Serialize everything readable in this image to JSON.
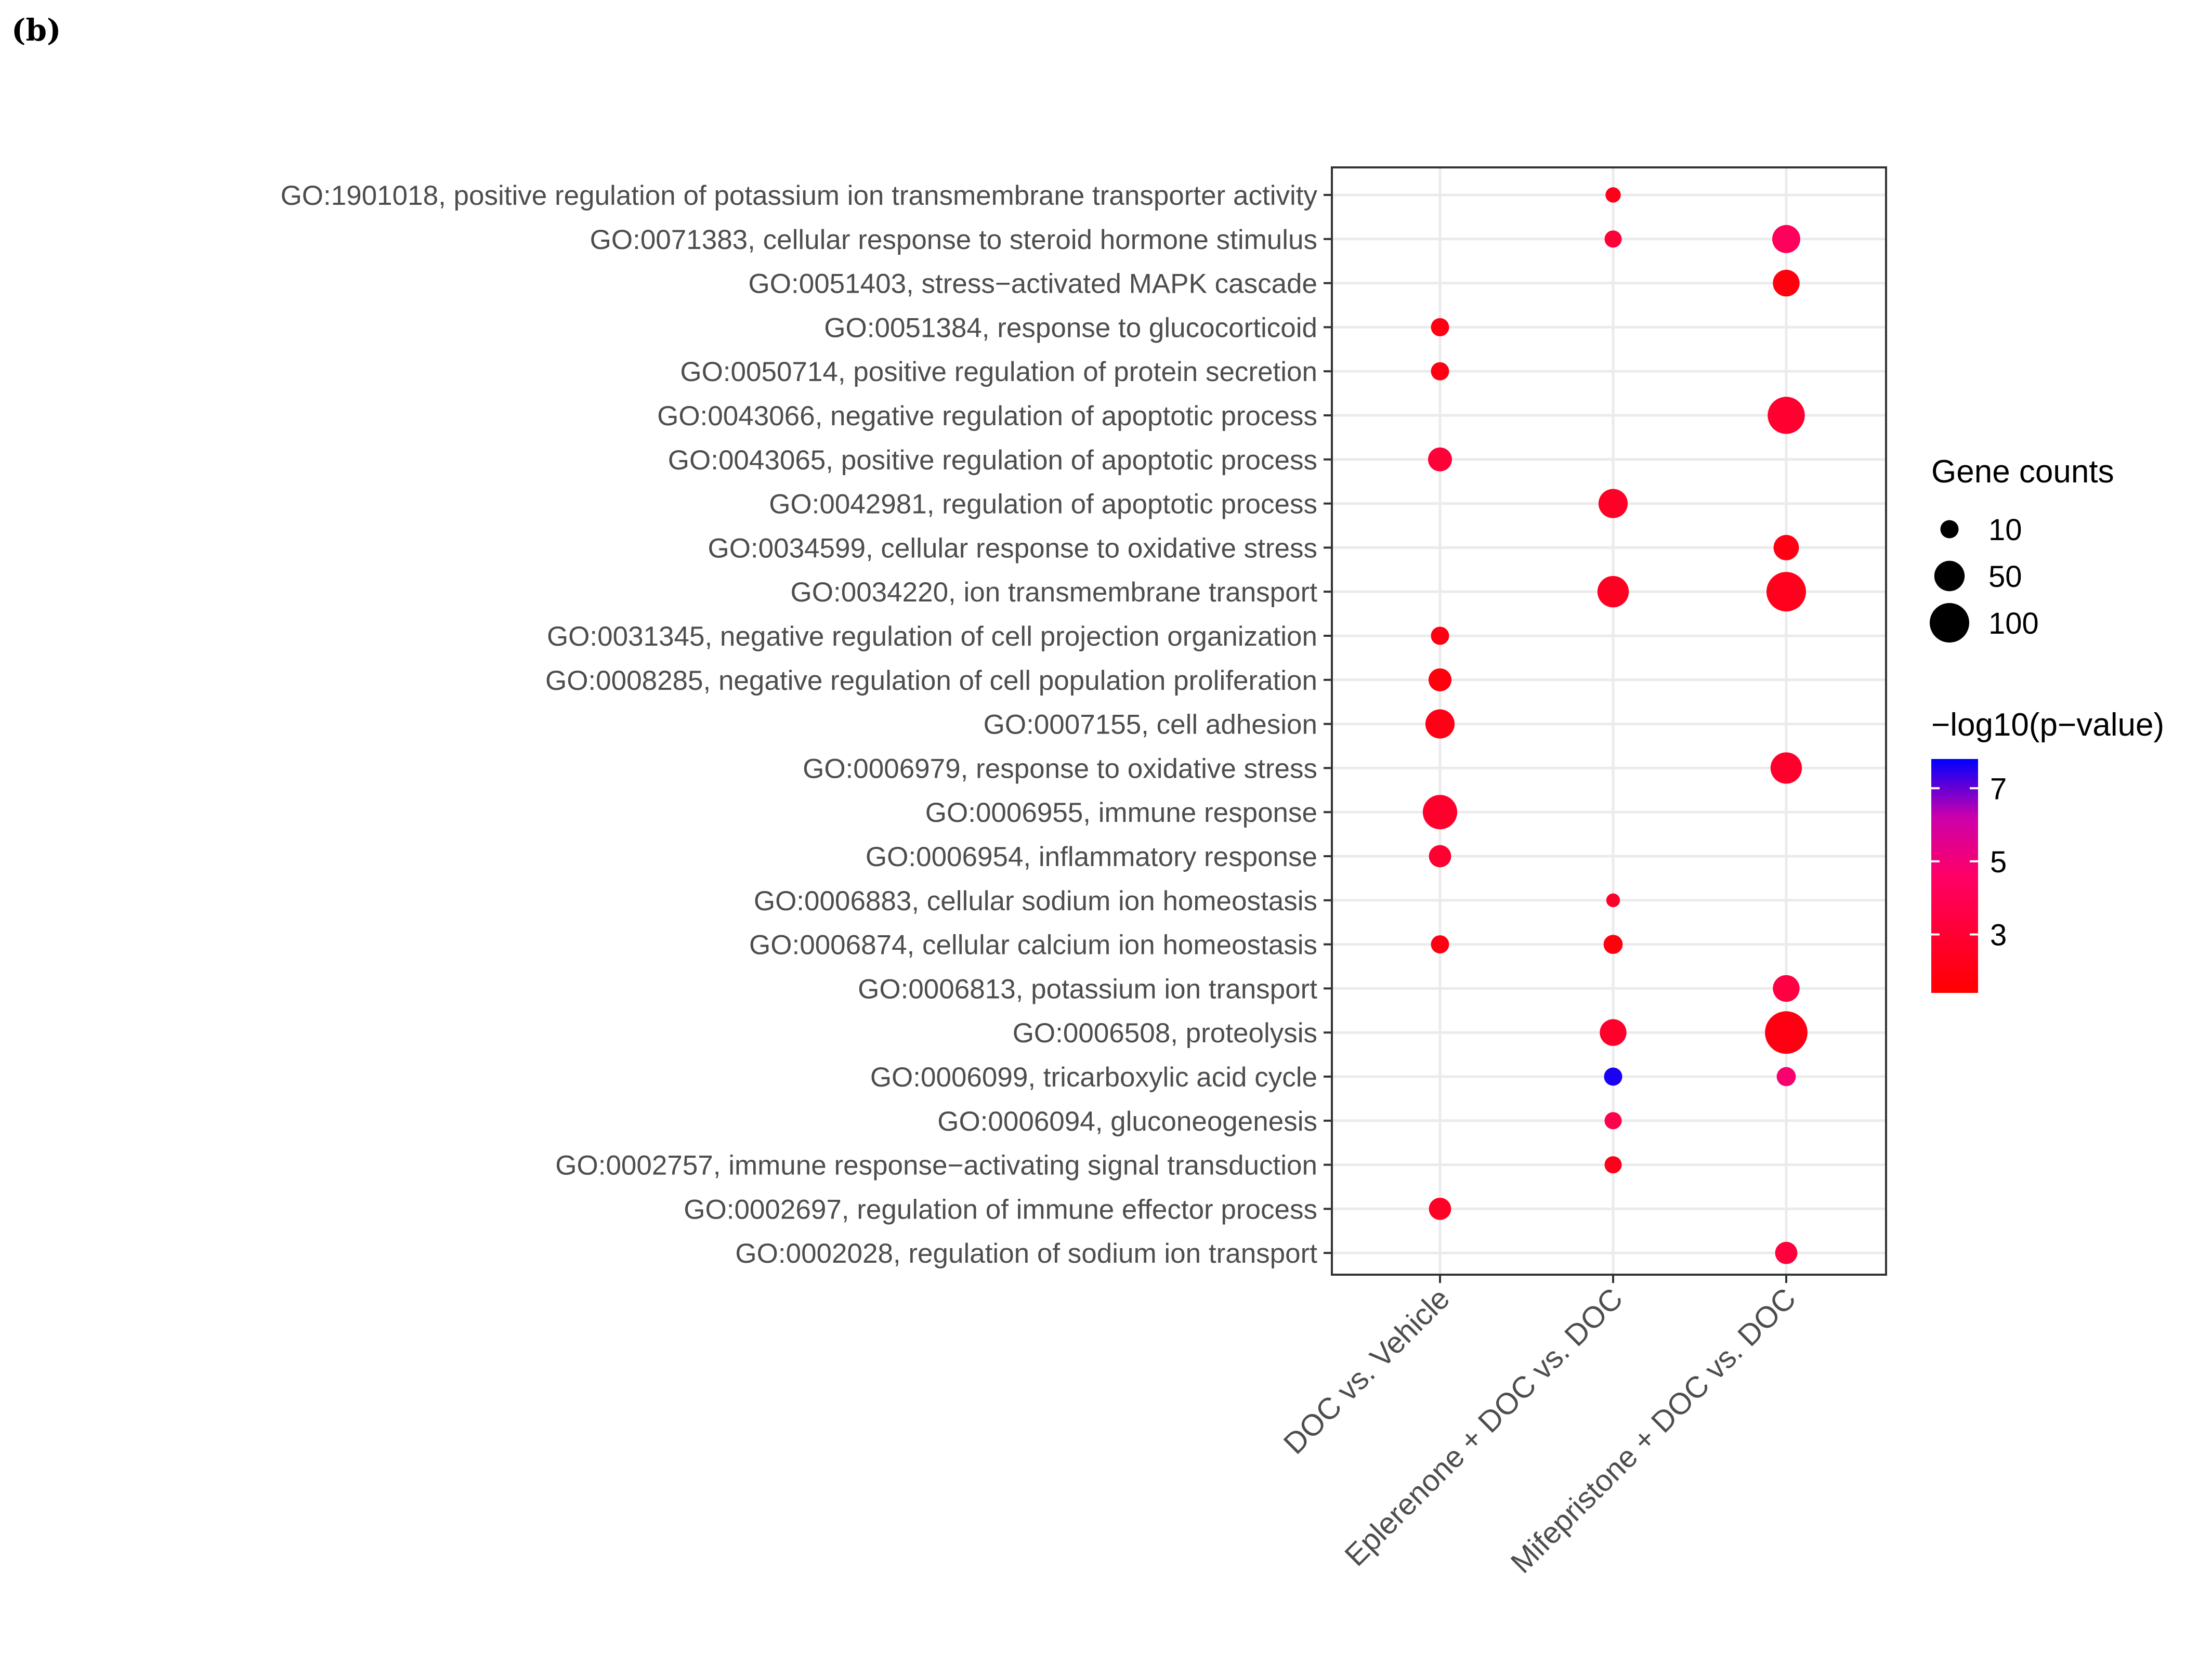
{
  "panel_label": "(b)",
  "chart_data": {
    "type": "scatter",
    "subtype": "dot-plot",
    "title": "",
    "xlabel": "",
    "ylabel": "",
    "grid": true,
    "x_categories": [
      "DOC vs. Vehicle",
      "Eplerenone + DOC vs. DOC",
      "Mifepristone + DOC vs. DOC"
    ],
    "y_categories": [
      "GO:1901018, positive regulation of potassium ion transmembrane transporter activity",
      "GO:0071383, cellular response to steroid hormone stimulus",
      "GO:0051403, stress−activated MAPK cascade",
      "GO:0051384, response to glucocorticoid",
      "GO:0050714, positive regulation of protein secretion",
      "GO:0043066, negative regulation of apoptotic process",
      "GO:0043065, positive regulation of apoptotic process",
      "GO:0042981, regulation of apoptotic process",
      "GO:0034599, cellular response to oxidative stress",
      "GO:0034220, ion transmembrane transport",
      "GO:0031345, negative regulation of cell projection organization",
      "GO:0008285, negative regulation of cell population proliferation",
      "GO:0007155, cell adhesion",
      "GO:0006979, response to oxidative stress",
      "GO:0006955, immune response",
      "GO:0006954, inflammatory response",
      "GO:0006883, cellular sodium ion homeostasis",
      "GO:0006874, cellular calcium ion homeostasis",
      "GO:0006813, potassium ion transport",
      "GO:0006508, proteolysis",
      "GO:0006099, tricarboxylic acid cycle",
      "GO:0006094, gluconeogenesis",
      "GO:0002757, immune response−activating signal transduction",
      "GO:0002697, regulation of immune effector process",
      "GO:0002028, regulation of sodium ion transport"
    ],
    "points": [
      {
        "x": "Eplerenone + DOC vs. DOC",
        "y": "GO:1901018, positive regulation of potassium ion transmembrane transporter activity",
        "count": 5,
        "neglog10p": 2.2
      },
      {
        "x": "Eplerenone + DOC vs. DOC",
        "y": "GO:0071383, cellular response to steroid hormone stimulus",
        "count": 8,
        "neglog10p": 3.2
      },
      {
        "x": "Mifepristone + DOC vs. DOC",
        "y": "GO:0071383, cellular response to steroid hormone stimulus",
        "count": 40,
        "neglog10p": 4.3
      },
      {
        "x": "Mifepristone + DOC vs. DOC",
        "y": "GO:0051403, stress−activated MAPK cascade",
        "count": 35,
        "neglog10p": 1.8
      },
      {
        "x": "DOC vs. Vehicle",
        "y": "GO:0051384, response to glucocorticoid",
        "count": 10,
        "neglog10p": 2.0
      },
      {
        "x": "DOC vs. Vehicle",
        "y": "GO:0050714, positive regulation of protein secretion",
        "count": 10,
        "neglog10p": 2.0
      },
      {
        "x": "Mifepristone + DOC vs. DOC",
        "y": "GO:0043066, negative regulation of apoptotic process",
        "count": 85,
        "neglog10p": 2.9
      },
      {
        "x": "DOC vs. Vehicle",
        "y": "GO:0043065, positive regulation of apoptotic process",
        "count": 25,
        "neglog10p": 3.2
      },
      {
        "x": "Eplerenone + DOC vs. DOC",
        "y": "GO:0042981, regulation of apoptotic process",
        "count": 45,
        "neglog10p": 2.6
      },
      {
        "x": "Mifepristone + DOC vs. DOC",
        "y": "GO:0034599, cellular response to oxidative stress",
        "count": 30,
        "neglog10p": 2.0
      },
      {
        "x": "Eplerenone + DOC vs. DOC",
        "y": "GO:0034220, ion transmembrane transport",
        "count": 55,
        "neglog10p": 2.5
      },
      {
        "x": "Mifepristone + DOC vs. DOC",
        "y": "GO:0034220, ion transmembrane transport",
        "count": 100,
        "neglog10p": 2.3
      },
      {
        "x": "DOC vs. Vehicle",
        "y": "GO:0031345, negative regulation of cell projection organization",
        "count": 10,
        "neglog10p": 2.0
      },
      {
        "x": "DOC vs. Vehicle",
        "y": "GO:0008285, negative regulation of cell population proliferation",
        "count": 22,
        "neglog10p": 1.8
      },
      {
        "x": "DOC vs. Vehicle",
        "y": "GO:0007155, cell adhesion",
        "count": 45,
        "neglog10p": 2.1
      },
      {
        "x": "Mifepristone + DOC vs. DOC",
        "y": "GO:0006979, response to oxidative stress",
        "count": 55,
        "neglog10p": 2.8
      },
      {
        "x": "DOC vs. Vehicle",
        "y": "GO:0006955, immune response",
        "count": 70,
        "neglog10p": 2.8
      },
      {
        "x": "DOC vs. Vehicle",
        "y": "GO:0006954, inflammatory response",
        "count": 20,
        "neglog10p": 2.9
      },
      {
        "x": "Eplerenone + DOC vs. DOC",
        "y": "GO:0006883, cellular sodium ion homeostasis",
        "count": 3,
        "neglog10p": 2.8
      },
      {
        "x": "DOC vs. Vehicle",
        "y": "GO:0006874, cellular calcium ion homeostasis",
        "count": 10,
        "neglog10p": 2.0
      },
      {
        "x": "Eplerenone + DOC vs. DOC",
        "y": "GO:0006874, cellular calcium ion homeostasis",
        "count": 12,
        "neglog10p": 1.8
      },
      {
        "x": "Mifepristone + DOC vs. DOC",
        "y": "GO:0006813, potassium ion transport",
        "count": 35,
        "neglog10p": 3.5
      },
      {
        "x": "Eplerenone + DOC vs. DOC",
        "y": "GO:0006508, proteolysis",
        "count": 35,
        "neglog10p": 2.8
      },
      {
        "x": "Mifepristone + DOC vs. DOC",
        "y": "GO:0006508, proteolysis",
        "count": 120,
        "neglog10p": 2.0
      },
      {
        "x": "Eplerenone + DOC vs. DOC",
        "y": "GO:0006099, tricarboxylic acid cycle",
        "count": 10,
        "neglog10p": 7.6
      },
      {
        "x": "Mifepristone + DOC vs. DOC",
        "y": "GO:0006099, tricarboxylic acid cycle",
        "count": 12,
        "neglog10p": 4.8
      },
      {
        "x": "Eplerenone + DOC vs. DOC",
        "y": "GO:0006094, gluconeogenesis",
        "count": 8,
        "neglog10p": 3.8
      },
      {
        "x": "Eplerenone + DOC vs. DOC",
        "y": "GO:0002757, immune response−activating signal transduction",
        "count": 8,
        "neglog10p": 2.2
      },
      {
        "x": "DOC vs. Vehicle",
        "y": "GO:0002697, regulation of immune effector process",
        "count": 20,
        "neglog10p": 2.6
      },
      {
        "x": "Mifepristone + DOC vs. DOC",
        "y": "GO:0002028, regulation of sodium ion transport",
        "count": 20,
        "neglog10p": 3.3
      }
    ],
    "size_legend": {
      "title": "Gene counts",
      "breaks": [
        10,
        50,
        100
      ],
      "labels": [
        "10",
        "50",
        "100"
      ]
    },
    "color_legend": {
      "title": "−log10(p−value)",
      "range": [
        1.4,
        7.8
      ],
      "breaks": [
        3,
        5,
        7
      ],
      "labels": [
        "3",
        "5",
        "7"
      ],
      "low_color": "#ff0000",
      "high_color": "#0000ff"
    }
  }
}
